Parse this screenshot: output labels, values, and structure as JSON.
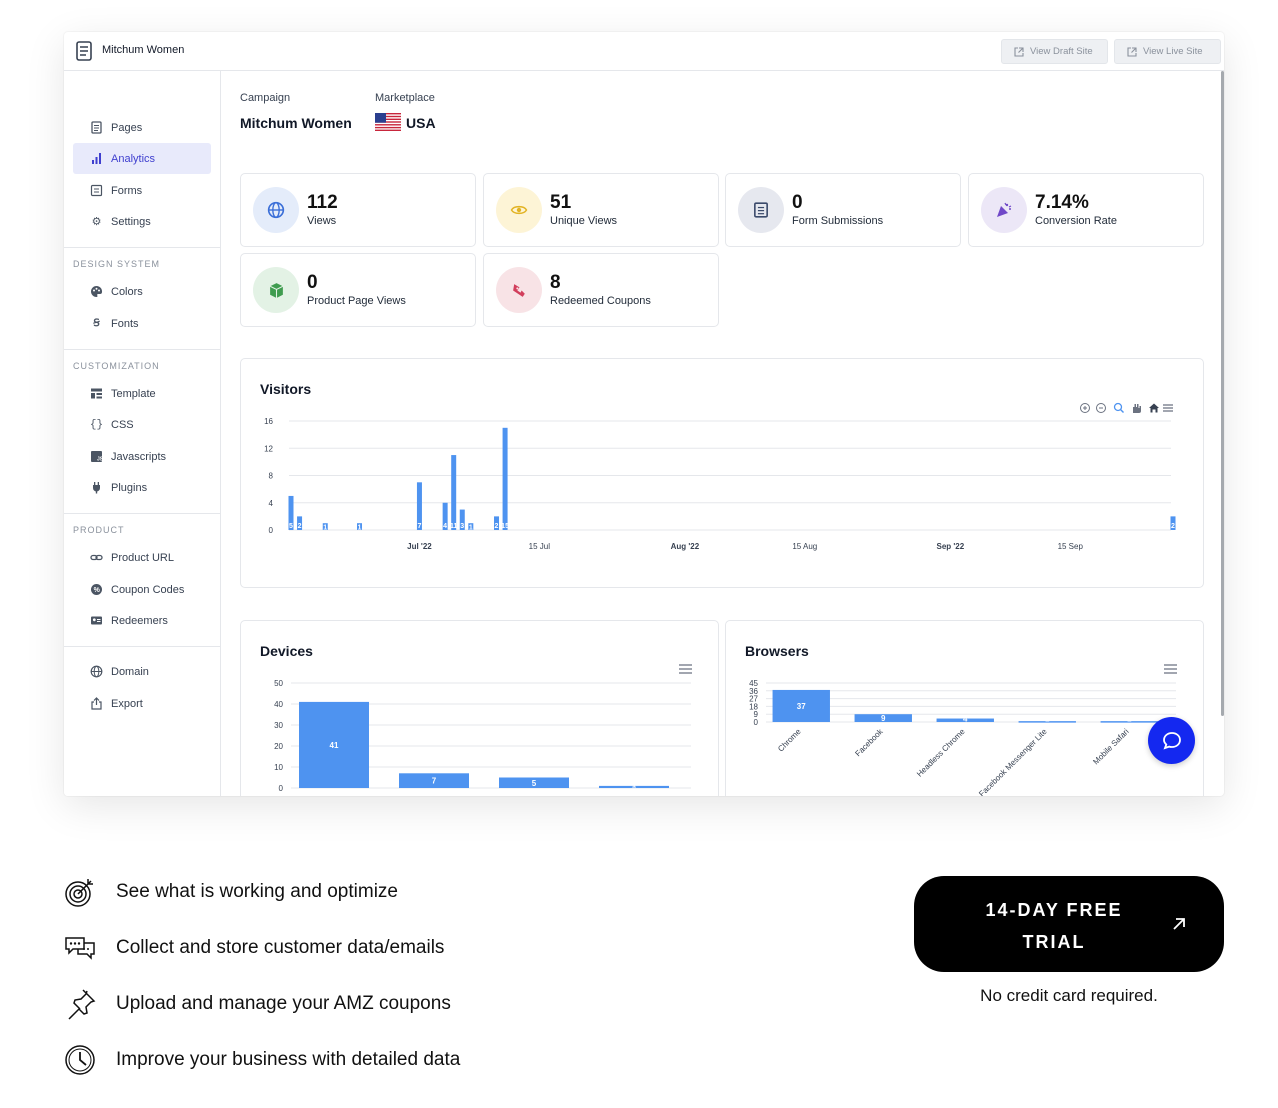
{
  "topbar": {
    "brand": "Mitchum Women",
    "view_draft": "View Draft Site",
    "view_live": "View Live Site"
  },
  "sidebar": {
    "items": [
      {
        "label": "Pages",
        "icon": "pages-icon"
      },
      {
        "label": "Analytics",
        "icon": "analytics-icon",
        "active": true
      },
      {
        "label": "Forms",
        "icon": "forms-icon"
      },
      {
        "label": "Settings",
        "icon": "gear-icon"
      }
    ],
    "design_system": {
      "title": "DESIGN SYSTEM",
      "items": [
        {
          "label": "Colors",
          "icon": "palette-icon"
        },
        {
          "label": "Fonts",
          "icon": "font-icon"
        }
      ]
    },
    "customization": {
      "title": "CUSTOMIZATION",
      "items": [
        {
          "label": "Template",
          "icon": "template-icon"
        },
        {
          "label": "CSS",
          "icon": "css-icon"
        },
        {
          "label": "Javascripts",
          "icon": "js-icon"
        },
        {
          "label": "Plugins",
          "icon": "plug-icon"
        }
      ]
    },
    "product": {
      "title": "PRODUCT",
      "items": [
        {
          "label": "Product URL",
          "icon": "link-icon"
        },
        {
          "label": "Coupon Codes",
          "icon": "badge-icon"
        },
        {
          "label": "Redeemers",
          "icon": "id-card-icon"
        }
      ]
    },
    "bottom": [
      {
        "label": "Domain",
        "icon": "globe-icon"
      },
      {
        "label": "Export",
        "icon": "export-icon"
      }
    ]
  },
  "campaign": {
    "campaign_label": "Campaign",
    "campaign_value": "Mitchum Women",
    "marketplace_label": "Marketplace",
    "marketplace_value": "USA"
  },
  "stats": [
    {
      "value": "112",
      "label": "Views",
      "icon": "globe-icon",
      "color": "#e4ecfa",
      "fg": "#3b6fd8"
    },
    {
      "value": "51",
      "label": "Unique Views",
      "icon": "eye-icon",
      "color": "#fdf4d6",
      "fg": "#e2b324"
    },
    {
      "value": "0",
      "label": "Form Submissions",
      "icon": "form-icon",
      "color": "#e6e8ef",
      "fg": "#3b4a6b"
    },
    {
      "value": "7.14%",
      "label": "Conversion Rate",
      "icon": "party-icon",
      "color": "#ece7f7",
      "fg": "#7048c8"
    },
    {
      "value": "0",
      "label": "Product Page Views",
      "icon": "box-icon",
      "color": "#e3f2e5",
      "fg": "#3f9c4f"
    },
    {
      "value": "8",
      "label": "Redeemed Coupons",
      "icon": "ticket-icon",
      "color": "#f8e3e6",
      "fg": "#d23e5c"
    }
  ],
  "visitors": {
    "title": "Visitors"
  },
  "devices": {
    "title": "Devices"
  },
  "browsers": {
    "title": "Browsers"
  },
  "chart_data": [
    {
      "type": "bar",
      "title": "Visitors",
      "xlabel": "",
      "ylabel": "",
      "ylim": [
        0,
        16
      ],
      "yticks": [
        0,
        4,
        8,
        12,
        16
      ],
      "x_tick_labels": [
        "Jul '22",
        "15 Jul",
        "Aug '22",
        "15 Aug",
        "Sep '22",
        "15 Sep"
      ],
      "x_tick_dates": [
        "2022-07-01",
        "2022-07-15",
        "2022-08-01",
        "2022-08-15",
        "2022-09-01",
        "2022-09-15"
      ],
      "x": [
        "2022-06-16",
        "2022-06-17",
        "2022-06-20",
        "2022-06-24",
        "2022-07-01",
        "2022-07-04",
        "2022-07-05",
        "2022-07-06",
        "2022-07-07",
        "2022-07-10",
        "2022-07-11",
        "2022-09-27"
      ],
      "values": [
        5,
        2,
        1,
        1,
        7,
        4,
        11,
        3,
        1,
        2,
        15,
        2
      ],
      "grid": true,
      "color": "#4e93f0"
    },
    {
      "type": "bar",
      "title": "Devices",
      "categories": [
        "",
        "",
        "",
        ""
      ],
      "values": [
        41,
        7,
        5,
        1
      ],
      "ylim": [
        0,
        50
      ],
      "yticks": [
        0,
        10,
        20,
        30,
        40,
        50
      ],
      "grid": true,
      "color": "#4e93f0"
    },
    {
      "type": "bar",
      "title": "Browsers",
      "categories": [
        "Chrome",
        "Facebook",
        "Headless Chrome",
        "Facebook Messenger Lite",
        "Mobile Safari"
      ],
      "values": [
        37,
        9,
        4,
        1,
        1
      ],
      "ylim": [
        0,
        45
      ],
      "yticks": [
        0,
        9,
        18,
        27,
        36,
        45
      ],
      "grid": true,
      "color": "#4e93f0"
    }
  ],
  "features": [
    {
      "text": "See what is working and optimize",
      "icon": "target-icon"
    },
    {
      "text": "Collect and store customer data/emails",
      "icon": "chat-bubbles-icon"
    },
    {
      "text": "Upload and manage your AMZ coupons",
      "icon": "pushpin-icon"
    },
    {
      "text": "Improve your business with detailed data",
      "icon": "clock-icon"
    }
  ],
  "cta": {
    "label": "14-DAY FREE TRIAL",
    "sub": "No credit card required."
  }
}
